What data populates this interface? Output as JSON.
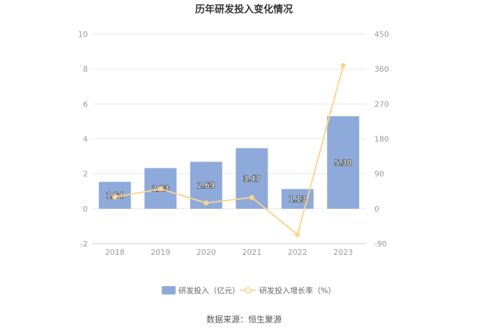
{
  "chart_data": {
    "type": "bar",
    "title": "历年研发投入变化情况",
    "categories": [
      "2018",
      "2019",
      "2020",
      "2021",
      "2022",
      "2023"
    ],
    "series": [
      {
        "name": "研发投入（亿元）",
        "type": "bar",
        "axis": "left",
        "values": [
          1.54,
          2.33,
          2.69,
          3.47,
          1.13,
          5.3
        ],
        "labels": [
          "1.54",
          "2.33",
          "2.69",
          "3.47",
          "1.13",
          "5.30"
        ]
      },
      {
        "name": "研发投入增长率（%）",
        "type": "line",
        "axis": "right",
        "values": [
          30,
          51,
          15,
          29,
          -67,
          369
        ]
      }
    ],
    "y_left": {
      "min": -2,
      "max": 10,
      "ticks": [
        "-2",
        "0",
        "2",
        "4",
        "6",
        "8",
        "10"
      ]
    },
    "y_right": {
      "min": -90,
      "max": 450,
      "ticks": [
        "-90",
        "0",
        "90",
        "180",
        "270",
        "360",
        "450"
      ]
    },
    "colors": {
      "bar": "#8eaadb",
      "line": "#f9d48b",
      "grid": "#e6e6e6"
    },
    "grid": true,
    "legend_position": "bottom",
    "source": "数据来源：恒生聚源"
  }
}
